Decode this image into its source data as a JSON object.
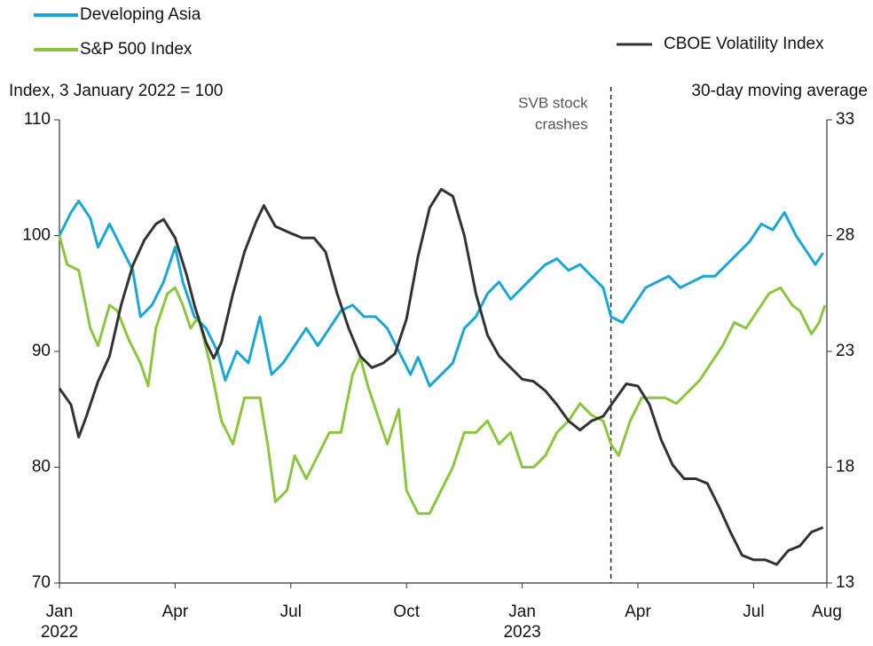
{
  "chart_data": {
    "type": "line",
    "legend": [
      {
        "series": 0,
        "corner": "top-left"
      },
      {
        "series": 1,
        "corner": "top-left"
      },
      {
        "series": 2,
        "corner": "top-right"
      }
    ],
    "ylabel": "Index, 3 January 2022 = 100",
    "y2label": "30-day moving average",
    "xlim": [
      0,
      19.9
    ],
    "xticks": [
      {
        "value": 0,
        "label": "Jan"
      },
      {
        "value": 3,
        "label": "Apr"
      },
      {
        "value": 6,
        "label": "Jul"
      },
      {
        "value": 9,
        "label": "Oct"
      },
      {
        "value": 12,
        "label": "Jan"
      },
      {
        "value": 15,
        "label": "Apr"
      },
      {
        "value": 18,
        "label": "Jul"
      },
      {
        "value": 19.9,
        "label": "Aug"
      }
    ],
    "year_labels": [
      {
        "value": 0,
        "label": "2022"
      },
      {
        "value": 12,
        "label": "2023"
      }
    ],
    "ylim": [
      70,
      110
    ],
    "yticks": [
      70,
      80,
      90,
      100,
      110
    ],
    "y2lim": [
      13,
      33
    ],
    "y2ticks": [
      13,
      18,
      23,
      28,
      33
    ],
    "annotations": [
      {
        "x": 14.3,
        "lines": [
          "SVB stock",
          "crashes"
        ]
      }
    ],
    "series": [
      {
        "name": "Developing Asia",
        "color": "#1aa7d4",
        "x": [
          0,
          0.3,
          0.5,
          0.8,
          1.0,
          1.3,
          1.6,
          1.9,
          2.1,
          2.4,
          2.7,
          3.0,
          3.2,
          3.5,
          3.8,
          4.1,
          4.3,
          4.6,
          4.9,
          5.2,
          5.5,
          5.8,
          6.1,
          6.4,
          6.7,
          7.0,
          7.3,
          7.6,
          7.9,
          8.2,
          8.5,
          8.8,
          9.1,
          9.3,
          9.6,
          9.9,
          10.2,
          10.5,
          10.8,
          11.1,
          11.4,
          11.7,
          12.0,
          12.3,
          12.6,
          12.9,
          13.2,
          13.5,
          13.8,
          14.1,
          14.3,
          14.6,
          14.9,
          15.2,
          15.5,
          15.8,
          16.1,
          16.4,
          16.7,
          17.0,
          17.3,
          17.6,
          17.9,
          18.2,
          18.5,
          18.8,
          19.1,
          19.4,
          19.6,
          19.8
        ],
        "values": [
          100,
          102,
          103,
          101.5,
          99,
          101,
          99,
          97,
          93,
          94,
          96,
          99,
          96,
          93,
          92,
          90,
          87.5,
          90,
          89,
          93,
          88,
          89,
          90.5,
          92,
          90.5,
          92,
          93.5,
          94,
          93,
          93,
          92,
          90,
          88,
          89.5,
          87,
          88,
          89,
          92,
          93,
          95,
          96,
          94.5,
          95.5,
          96.5,
          97.5,
          98,
          97,
          97.5,
          96.5,
          95.5,
          93,
          92.5,
          94,
          95.5,
          96,
          96.5,
          95.5,
          96,
          96.5,
          96.5,
          97.5,
          98.5,
          99.5,
          101,
          100.5,
          102,
          100,
          98.5,
          97.5,
          98.5
        ]
      },
      {
        "name": "S&P 500 Index",
        "color": "#8cc63f",
        "x": [
          0,
          0.2,
          0.5,
          0.8,
          1.0,
          1.3,
          1.5,
          1.8,
          2.1,
          2.3,
          2.5,
          2.8,
          3.0,
          3.2,
          3.4,
          3.6,
          3.9,
          4.2,
          4.5,
          4.8,
          5.0,
          5.2,
          5.4,
          5.6,
          5.9,
          6.1,
          6.4,
          6.7,
          7.0,
          7.3,
          7.6,
          7.8,
          8.0,
          8.3,
          8.5,
          8.8,
          9.0,
          9.3,
          9.6,
          9.9,
          10.2,
          10.5,
          10.8,
          11.1,
          11.4,
          11.7,
          12.0,
          12.3,
          12.6,
          12.9,
          13.2,
          13.5,
          13.8,
          14.1,
          14.3,
          14.5,
          14.8,
          15.1,
          15.4,
          15.7,
          16.0,
          16.3,
          16.6,
          16.9,
          17.2,
          17.5,
          17.8,
          18.1,
          18.4,
          18.7,
          19.0,
          19.2,
          19.5,
          19.7,
          19.85
        ],
        "values": [
          100,
          97.5,
          97,
          92,
          90.5,
          94,
          93.5,
          91,
          89,
          87,
          92,
          95,
          95.5,
          94,
          92,
          93,
          89,
          84,
          82,
          86,
          86,
          86,
          82,
          77,
          78,
          81,
          79,
          81,
          83,
          83,
          88,
          89.5,
          87,
          84,
          82,
          85,
          78,
          76,
          76,
          78,
          80,
          83,
          83,
          84,
          82,
          83,
          80,
          80,
          81,
          83,
          84,
          85.5,
          84.5,
          84,
          82,
          81,
          84,
          86,
          86,
          86,
          85.5,
          86.5,
          87.5,
          89,
          90.5,
          92.5,
          92,
          93.5,
          95,
          95.5,
          94,
          93.5,
          91.5,
          92.5,
          94
        ]
      },
      {
        "name": "CBOE Volatility Index",
        "color": "#333333",
        "axis": "y2",
        "x": [
          0,
          0.3,
          0.5,
          0.7,
          1.0,
          1.3,
          1.6,
          1.9,
          2.2,
          2.5,
          2.7,
          3.0,
          3.3,
          3.5,
          3.8,
          4.0,
          4.2,
          4.5,
          4.8,
          5.1,
          5.3,
          5.6,
          6.0,
          6.3,
          6.6,
          6.9,
          7.2,
          7.5,
          7.8,
          8.1,
          8.4,
          8.7,
          9.0,
          9.3,
          9.6,
          9.9,
          10.2,
          10.5,
          10.8,
          11.1,
          11.4,
          11.7,
          12.0,
          12.3,
          12.6,
          12.9,
          13.2,
          13.5,
          13.8,
          14.1,
          14.4,
          14.7,
          15.0,
          15.3,
          15.6,
          15.9,
          16.2,
          16.5,
          16.8,
          17.1,
          17.4,
          17.7,
          18.0,
          18.3,
          18.6,
          18.9,
          19.2,
          19.5,
          19.8
        ],
        "values": [
          21.4,
          20.7,
          19.3,
          20.2,
          21.7,
          22.8,
          25.0,
          26.7,
          27.8,
          28.5,
          28.7,
          27.9,
          26.3,
          25.0,
          23.4,
          22.7,
          23.4,
          25.5,
          27.3,
          28.6,
          29.3,
          28.4,
          28.1,
          27.9,
          27.9,
          27.3,
          25.5,
          24.0,
          22.8,
          22.3,
          22.5,
          22.9,
          24.4,
          27.1,
          29.2,
          30.0,
          29.7,
          28.0,
          25.5,
          23.7,
          22.8,
          22.3,
          21.8,
          21.7,
          21.3,
          20.7,
          20.0,
          19.6,
          20.0,
          20.2,
          20.9,
          21.6,
          21.5,
          20.7,
          19.2,
          18.1,
          17.5,
          17.5,
          17.3,
          16.3,
          15.2,
          14.2,
          14.0,
          14.0,
          13.8,
          14.4,
          14.6,
          15.2,
          15.4
        ]
      }
    ]
  }
}
